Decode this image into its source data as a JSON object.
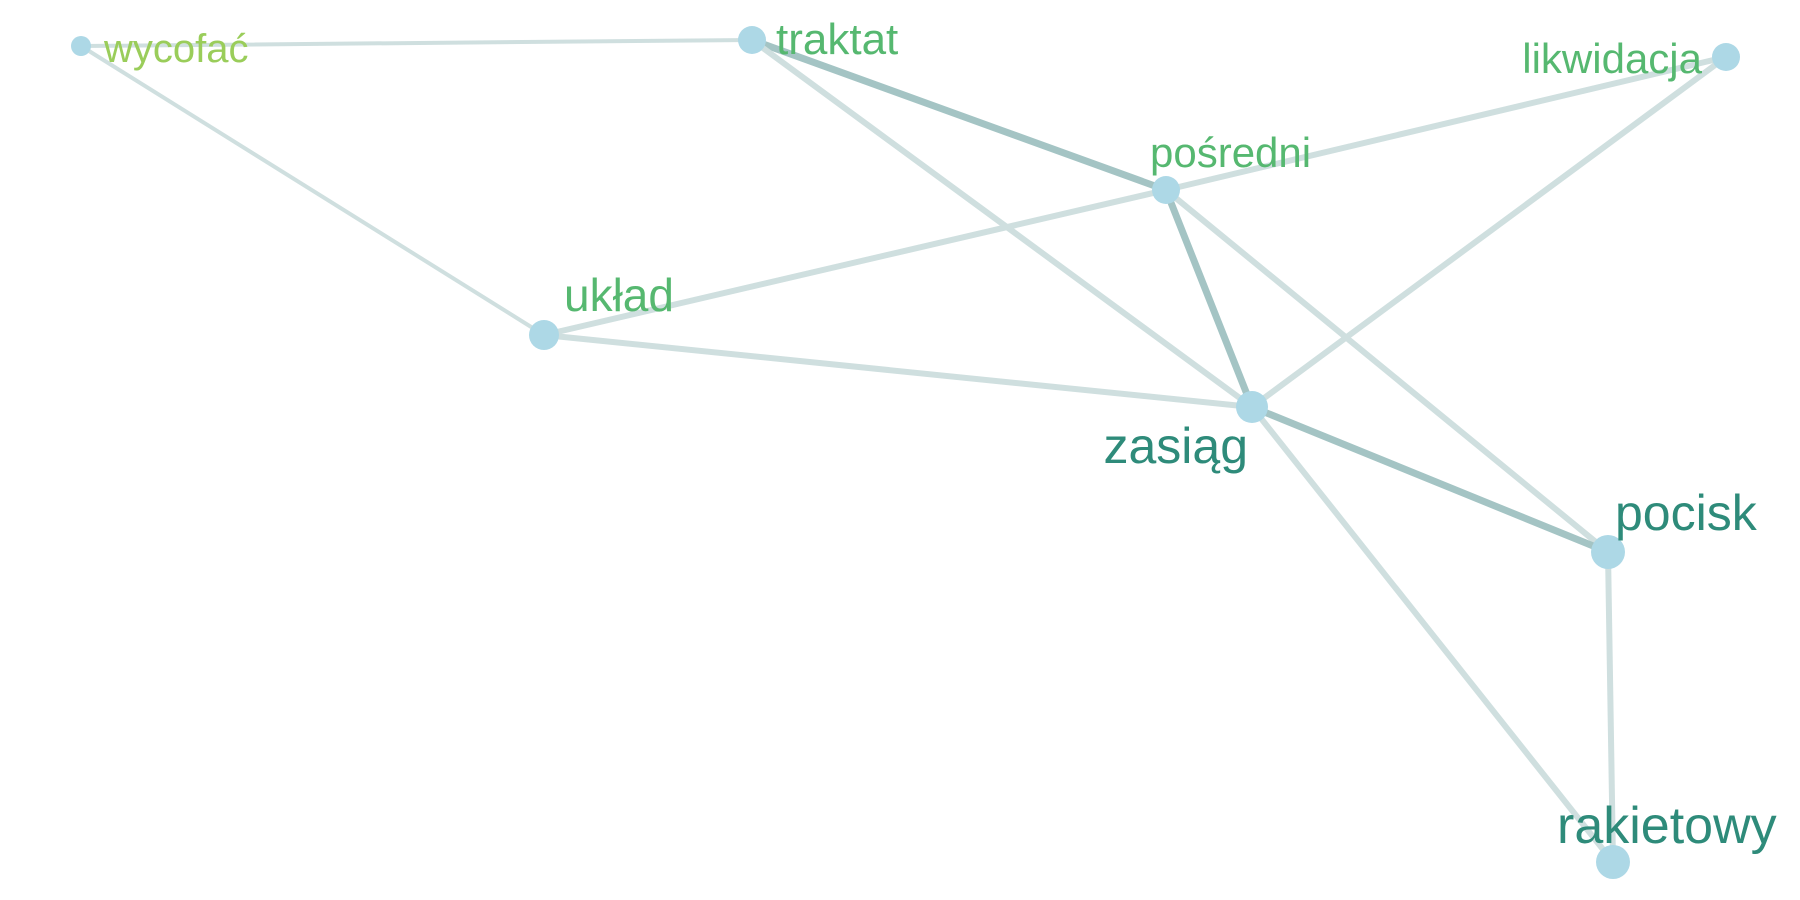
{
  "graph": {
    "nodes": [
      {
        "id": "wycofac",
        "label": "wycofać",
        "color": "#9ACD5A",
        "weight": 1
      },
      {
        "id": "traktat",
        "label": "traktat",
        "color": "#56B870",
        "weight": 2
      },
      {
        "id": "likwidacja",
        "label": "likwidacja",
        "color": "#56B870",
        "weight": 2
      },
      {
        "id": "posredni",
        "label": "pośredni",
        "color": "#56B870",
        "weight": 2
      },
      {
        "id": "uklad",
        "label": "układ",
        "color": "#56B870",
        "weight": 2
      },
      {
        "id": "zasieg",
        "label": "zasiąg",
        "color": "#2E8B7A",
        "weight": 3
      },
      {
        "id": "pocisk",
        "label": "pocisk",
        "color": "#2E8B7A",
        "weight": 3
      },
      {
        "id": "rakietowy",
        "label": "rakietowy",
        "color": "#2E8B7A",
        "weight": 3
      }
    ],
    "edges": [
      {
        "source": "wycofac",
        "target": "traktat",
        "strength": 1
      },
      {
        "source": "wycofac",
        "target": "uklad",
        "strength": 1
      },
      {
        "source": "traktat",
        "target": "posredni",
        "strength": 3
      },
      {
        "source": "traktat",
        "target": "zasieg",
        "strength": 2
      },
      {
        "source": "likwidacja",
        "target": "posredni",
        "strength": 2
      },
      {
        "source": "likwidacja",
        "target": "zasieg",
        "strength": 2
      },
      {
        "source": "posredni",
        "target": "uklad",
        "strength": 2
      },
      {
        "source": "posredni",
        "target": "zasieg",
        "strength": 3
      },
      {
        "source": "posredni",
        "target": "pocisk",
        "strength": 2
      },
      {
        "source": "uklad",
        "target": "zasieg",
        "strength": 2
      },
      {
        "source": "zasieg",
        "target": "pocisk",
        "strength": 3
      },
      {
        "source": "zasieg",
        "target": "rakietowy",
        "strength": 2
      },
      {
        "source": "pocisk",
        "target": "rakietowy",
        "strength": 2
      }
    ],
    "node_color": "#ADD8E6",
    "edge_color_light": "#CFDFDF",
    "edge_color_dark": "#A4C4C4"
  }
}
